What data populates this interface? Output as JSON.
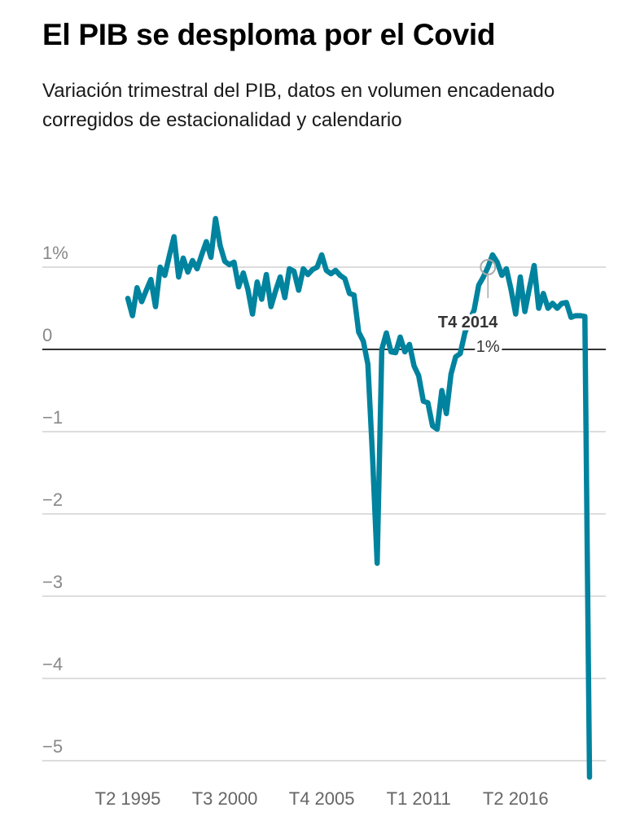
{
  "header": {
    "title": "El PIB se desploma por el Covid",
    "subtitle": "Variación trimestral del PIB, datos en volumen encadenado corregidos de estacionalidad y calendario"
  },
  "colors": {
    "line": "#00839e",
    "gridline": "#dddddd",
    "zero_line": "#333333",
    "tick_text": "#888888",
    "annotation_text": "#333333"
  },
  "chart_data": {
    "type": "line",
    "title": "El PIB se desploma por el Covid",
    "subtitle": "Variación trimestral del PIB, datos en volumen encadenado corregidos de estacionalidad y calendario",
    "xlabel": "",
    "ylabel": "",
    "x_start": "T2 1995",
    "x_end": "T2 2020",
    "x_step": "quarter",
    "x_tick_labels": [
      {
        "label": "T2 1995",
        "index": 0
      },
      {
        "label": "T3 2000",
        "index": 21
      },
      {
        "label": "T4 2005",
        "index": 42
      },
      {
        "label": "T1 2011",
        "index": 63
      },
      {
        "label": "T2 2016",
        "index": 84
      }
    ],
    "y_ticks": [
      {
        "value": 1,
        "label": "1%"
      },
      {
        "value": 0,
        "label": "0"
      },
      {
        "value": -1,
        "label": "−1"
      },
      {
        "value": -2,
        "label": "−2"
      },
      {
        "value": -3,
        "label": "−3"
      },
      {
        "value": -4,
        "label": "−4"
      },
      {
        "value": -5,
        "label": "−5"
      }
    ],
    "ylim": [
      -5.2,
      1.6
    ],
    "grid": true,
    "series": [
      {
        "name": "Variación trimestral del PIB (%)",
        "values": [
          0.62,
          0.41,
          0.75,
          0.58,
          0.72,
          0.85,
          0.52,
          1.0,
          0.9,
          1.14,
          1.37,
          0.88,
          1.11,
          0.94,
          1.08,
          0.98,
          1.15,
          1.31,
          1.12,
          1.59,
          1.26,
          1.07,
          1.03,
          1.06,
          0.76,
          0.93,
          0.73,
          0.43,
          0.82,
          0.61,
          0.91,
          0.52,
          0.71,
          0.88,
          0.63,
          0.98,
          0.95,
          0.72,
          0.98,
          0.91,
          0.97,
          1.0,
          1.15,
          0.96,
          0.92,
          0.96,
          0.9,
          0.86,
          0.68,
          0.66,
          0.21,
          0.1,
          -0.18,
          -1.3,
          -2.6,
          0.0,
          0.2,
          -0.03,
          -0.04,
          0.15,
          -0.03,
          0.06,
          -0.2,
          -0.32,
          -0.63,
          -0.65,
          -0.93,
          -0.97,
          -0.5,
          -0.78,
          -0.3,
          -0.09,
          -0.05,
          0.2,
          0.35,
          0.48,
          0.78,
          0.88,
          1.0,
          1.15,
          1.06,
          0.9,
          0.98,
          0.73,
          0.43,
          0.88,
          0.46,
          0.75,
          1.02,
          0.5,
          0.68,
          0.5,
          0.56,
          0.5,
          0.56,
          0.57,
          0.39,
          0.41,
          0.41,
          0.4,
          -5.2
        ]
      }
    ],
    "annotation": {
      "label": "T4 2014",
      "value_label": "1%",
      "index": 78,
      "value": 1.0
    }
  }
}
